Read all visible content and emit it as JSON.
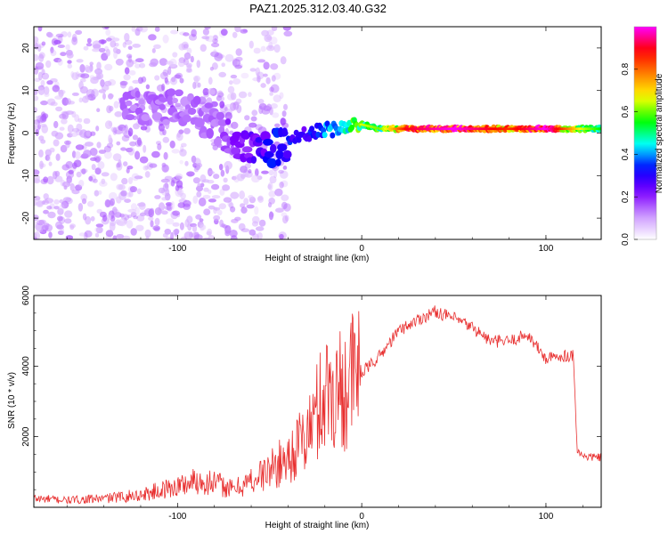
{
  "title": "PAZ1.2025.312.03.40.G32",
  "chart_data": [
    {
      "type": "heatmap",
      "name": "spectrogram",
      "xlabel": "Height of straight line (km)",
      "ylabel": "Frequency (Hz)",
      "xlim": [
        -178,
        130
      ],
      "ylim": [
        -25,
        25
      ],
      "xticks": [
        -100,
        0,
        100
      ],
      "xtick_labels": [
        "-100",
        "0",
        "100"
      ],
      "yticks": [
        -20,
        -10,
        0,
        10,
        20
      ],
      "ytick_labels": [
        "-20",
        "-10",
        "0",
        "10",
        "20"
      ],
      "colorbar": {
        "label": "Normalized spectral amplitude",
        "range": [
          0,
          1
        ],
        "ticks": [
          0.0,
          0.2,
          0.4,
          0.6,
          0.8
        ],
        "tick_labels": [
          "0.0",
          "0.2",
          "0.4",
          "0.6",
          "0.8"
        ],
        "colors": [
          "#ffffff",
          "#cc99ff",
          "#7f00ff",
          "#0000ff",
          "#00ffff",
          "#00ff00",
          "#ffff00",
          "#ff8000",
          "#ff0000",
          "#ff00ff"
        ]
      },
      "ridge": {
        "x": [
          -100,
          -80,
          -60,
          -45,
          -30,
          -15,
          0,
          10,
          25,
          50,
          80,
          100,
          120,
          130
        ],
        "freq": [
          6,
          2,
          -4,
          -3,
          0,
          1,
          2,
          1,
          1,
          1,
          1,
          1,
          1,
          1
        ],
        "amplitude": [
          0.15,
          0.15,
          0.25,
          0.35,
          0.3,
          0.45,
          0.6,
          0.55,
          0.85,
          0.95,
          0.8,
          0.95,
          0.6,
          0.5
        ]
      }
    },
    {
      "type": "line",
      "name": "snr",
      "xlabel": "Height of straight line (km)",
      "ylabel": "SNR (10 * v/v)",
      "xlim": [
        -178,
        130
      ],
      "ylim": [
        0,
        6000
      ],
      "xticks": [
        -100,
        0,
        100
      ],
      "xtick_labels": [
        "-100",
        "0",
        "100"
      ],
      "yticks": [
        2000,
        4000,
        6000
      ],
      "ytick_labels": [
        "2000",
        "4000",
        "6000"
      ],
      "color": "#e83030",
      "series": [
        {
          "name": "SNR",
          "x": [
            -178,
            -160,
            -140,
            -120,
            -100,
            -90,
            -80,
            -70,
            -60,
            -50,
            -40,
            -30,
            -25,
            -20,
            -15,
            -10,
            -5,
            0,
            10,
            20,
            30,
            40,
            50,
            60,
            70,
            80,
            90,
            100,
            110,
            115,
            117,
            120,
            130
          ],
          "y": [
            250,
            200,
            250,
            350,
            600,
            750,
            700,
            500,
            750,
            1050,
            1400,
            2000,
            2600,
            3300,
            3300,
            3400,
            3700,
            3800,
            4300,
            5000,
            5300,
            5550,
            5350,
            5100,
            4700,
            4700,
            4900,
            4200,
            4300,
            4300,
            1600,
            1450,
            1400
          ]
        }
      ]
    }
  ]
}
